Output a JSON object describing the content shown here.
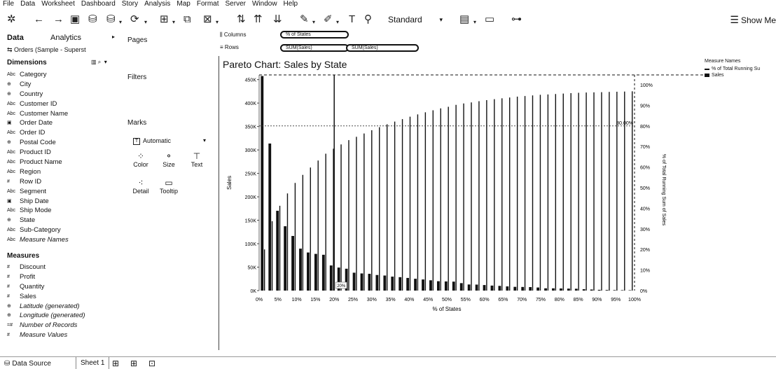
{
  "menu": [
    "File",
    "Data",
    "Worksheet",
    "Dashboard",
    "Story",
    "Analysis",
    "Map",
    "Format",
    "Server",
    "Window",
    "Help"
  ],
  "toolbar": {
    "fit_select": "Standard",
    "show_me": "Show Me",
    "icons": [
      "tableau-logo-icon",
      "undo-icon",
      "redo-icon",
      "save-icon",
      "new-datasource-icon",
      "pause-icon",
      "refresh-icon",
      "new-worksheet-icon",
      "duplicate-icon",
      "clear-icon",
      "swap-icon",
      "sort-ascending-icon",
      "sort-descending-icon",
      "totals-icon",
      "highlight-icon",
      "group-icon",
      "label-icon",
      "pin-icon",
      "chart-type-icon",
      "presentation-icon",
      "share-icon"
    ]
  },
  "data_pane": {
    "tab_data": "Data",
    "tab_analytics": "Analytics",
    "datasource": "Orders (Sample - Superst",
    "dimensions_header": "Dimensions",
    "dimensions": [
      {
        "icon": "Abc",
        "name": "Category"
      },
      {
        "icon": "globe",
        "name": "City"
      },
      {
        "icon": "globe",
        "name": "Country"
      },
      {
        "icon": "Abc",
        "name": "Customer ID"
      },
      {
        "icon": "Abc",
        "name": "Customer Name"
      },
      {
        "icon": "date",
        "name": "Order Date"
      },
      {
        "icon": "Abc",
        "name": "Order ID"
      },
      {
        "icon": "globe",
        "name": "Postal Code"
      },
      {
        "icon": "Abc",
        "name": "Product ID"
      },
      {
        "icon": "Abc",
        "name": "Product Name"
      },
      {
        "icon": "Abc",
        "name": "Region"
      },
      {
        "icon": "#",
        "name": "Row ID"
      },
      {
        "icon": "Abc",
        "name": "Segment"
      },
      {
        "icon": "date",
        "name": "Ship Date"
      },
      {
        "icon": "Abc",
        "name": "Ship Mode"
      },
      {
        "icon": "globe",
        "name": "State"
      },
      {
        "icon": "Abc",
        "name": "Sub-Category"
      },
      {
        "icon": "Abc",
        "name": "Measure Names",
        "italic": true
      }
    ],
    "measures_header": "Measures",
    "measures": [
      {
        "icon": "#",
        "name": "Discount"
      },
      {
        "icon": "#",
        "name": "Profit"
      },
      {
        "icon": "#",
        "name": "Quantity"
      },
      {
        "icon": "#",
        "name": "Sales"
      },
      {
        "icon": "globe",
        "name": "Latitude (generated)",
        "italic": true
      },
      {
        "icon": "globe",
        "name": "Longitude (generated)",
        "italic": true
      },
      {
        "icon": "=#",
        "name": "Number of Records",
        "italic": true
      },
      {
        "icon": "#",
        "name": "Measure Values",
        "italic": true
      }
    ]
  },
  "shelves": {
    "pages": "Pages",
    "filters": "Filters",
    "marks": "Marks",
    "marks_type": "Automatic",
    "mark_buttons": [
      {
        "label": "Color",
        "icon": "color-icon"
      },
      {
        "label": "Size",
        "icon": "size-icon"
      },
      {
        "label": "Text",
        "icon": "text-icon"
      },
      {
        "label": "Detail",
        "icon": "detail-icon"
      },
      {
        "label": "Tooltip",
        "icon": "tooltip-icon"
      }
    ],
    "columns_label": "Columns",
    "rows_label": "Rows",
    "columns_pills": [
      "% of States"
    ],
    "rows_pills": [
      "SUM(Sales)",
      "SUM(Sales)"
    ]
  },
  "legend": {
    "title": "Measure Names",
    "items": [
      "% of Total Running Su",
      "Sales"
    ]
  },
  "sheets": {
    "data_source": "Data Source",
    "active": "Sheet 1"
  },
  "chart_data": {
    "type": "bar",
    "title": "Pareto Chart: Sales by State",
    "xlabel": "% of States",
    "ylabel": "Sales",
    "y2label": "% of Total Running Sum of Sales",
    "x_ticks": [
      "0%",
      "5%",
      "10%",
      "15%",
      "20%",
      "25%",
      "30%",
      "35%",
      "40%",
      "45%",
      "50%",
      "55%",
      "60%",
      "65%",
      "70%",
      "75%",
      "80%",
      "85%",
      "90%",
      "95%",
      "100%"
    ],
    "y_ticks": [
      "0K",
      "50K",
      "100K",
      "150K",
      "200K",
      "250K",
      "300K",
      "350K",
      "400K",
      "450K"
    ],
    "y2_ticks": [
      "0%",
      "10%",
      "20%",
      "30%",
      "40%",
      "50%",
      "60%",
      "70%",
      "80%",
      "90%",
      "100%"
    ],
    "ylim": [
      0,
      460000
    ],
    "y2lim": [
      0,
      1.0
    ],
    "reference_line": {
      "value": 0.8,
      "label": "80.00%"
    },
    "reference_x_label": "20%",
    "series": [
      {
        "name": "Sales",
        "values": [
          457688,
          313670,
          170188,
          137233,
          116512,
          89474,
          81247,
          78258,
          76381,
          53556,
          49095,
          46600,
          38153,
          36592,
          35763,
          33229,
          32115,
          29757,
          28634,
          26964,
          25193,
          23694,
          21970,
          19990,
          19510,
          19092,
          15886,
          12978,
          12764,
          11820,
          10672,
          10030,
          8924,
          7957,
          7712,
          7464,
          6576,
          4864,
          4810,
          4513,
          4208,
          3940,
          2865,
          2244,
          1603,
          1316,
          1071,
          920,
          819
        ]
      },
      {
        "name": "% of Total Running Sum of Sales",
        "values": [
          0.2,
          0.337,
          0.412,
          0.472,
          0.523,
          0.562,
          0.598,
          0.632,
          0.665,
          0.689,
          0.71,
          0.731,
          0.747,
          0.763,
          0.779,
          0.794,
          0.808,
          0.821,
          0.833,
          0.845,
          0.856,
          0.866,
          0.876,
          0.885,
          0.893,
          0.902,
          0.909,
          0.914,
          0.92,
          0.925,
          0.93,
          0.934,
          0.938,
          0.942,
          0.945,
          0.948,
          0.951,
          0.953,
          0.955,
          0.957,
          0.959,
          0.961,
          0.962,
          0.963,
          0.964,
          0.965,
          0.966,
          0.967,
          0.968
        ]
      }
    ]
  }
}
